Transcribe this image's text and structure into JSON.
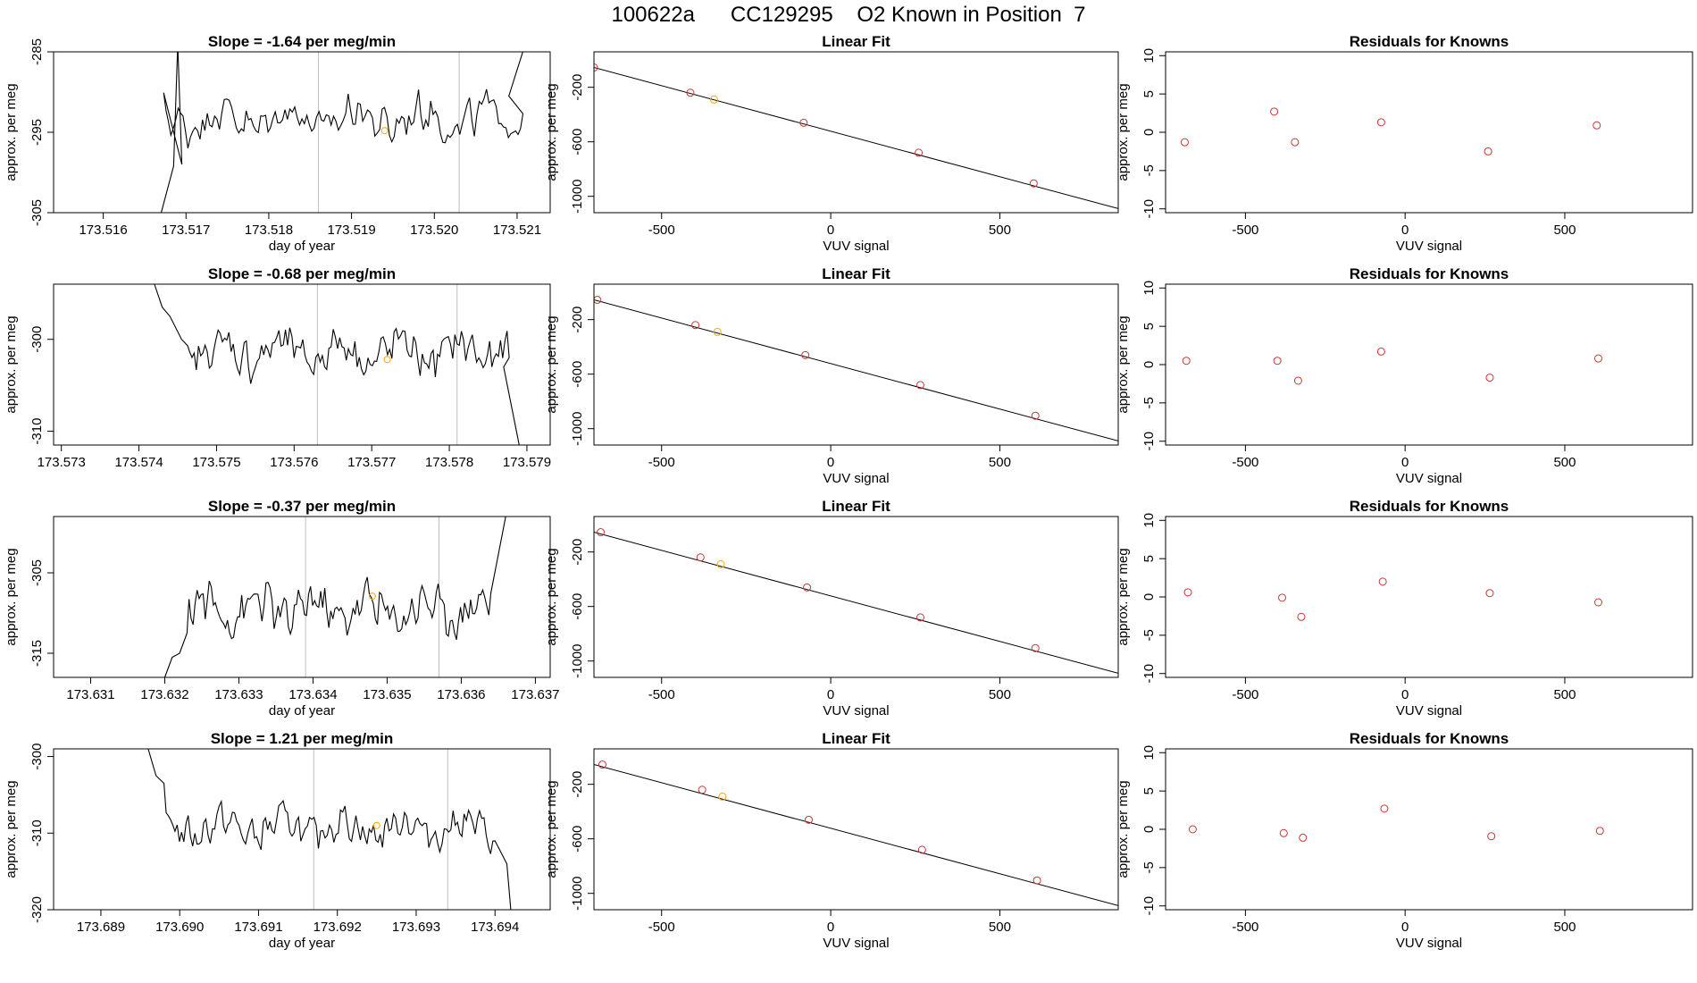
{
  "figure": {
    "title": "100622a      CC129295    O2 Known in Position  7"
  },
  "colors": {
    "trace": "#000000",
    "fit_line": "#000000",
    "known_marker": "#CD3333",
    "sample_marker": "#FFA500",
    "vline": "#BEBEBE",
    "axis": "#000000"
  },
  "chart_data": [
    {
      "type": "line",
      "panel": "timeseries",
      "row": 1,
      "title_prefix": "Slope = ",
      "slope": "-1.64",
      "title_suffix": " per meg/min",
      "xlabel": "day of year",
      "ylabel": "approx. per meg",
      "xlim": [
        173.5154,
        173.5214
      ],
      "ylim": [
        -305,
        -285
      ],
      "xticks": [
        "173.516",
        "173.517",
        "173.518",
        "173.519",
        "173.520",
        "173.521"
      ],
      "yticks": [
        "-305",
        "-295",
        "-285"
      ],
      "vlines": [
        173.5186,
        173.5203
      ],
      "highlight": {
        "x": 173.5194,
        "y": -294.8
      },
      "series": {
        "x_start": 173.5167,
        "x_end": 173.5211,
        "level": -293.3,
        "amp": 2.2,
        "head": [
          [
            173.5154,
            -305.0
          ],
          [
            173.5167,
            -305.0
          ],
          [
            173.51685,
            -299.2
          ],
          [
            173.5169,
            -284.0
          ],
          [
            173.51695,
            -299.0
          ]
        ],
        "tail": [
          [
            173.5209,
            -290.5
          ],
          [
            173.5211,
            -284.0
          ]
        ]
      }
    },
    {
      "type": "scatter",
      "panel": "linear_fit",
      "row": 1,
      "title": "Linear Fit",
      "xlabel": "VUV signal",
      "ylabel": "approx. per meg",
      "xlim": [
        -700,
        850
      ],
      "ylim": [
        -1120,
        60
      ],
      "xticks": [
        "-500",
        "0",
        "500"
      ],
      "yticks": [
        "-1000",
        "-600",
        "-200"
      ],
      "line": {
        "x": [
          -700,
          850
        ],
        "y": [
          -55,
          -1090
        ]
      },
      "points": [
        [
          -700,
          -55,
          "known"
        ],
        [
          -415,
          -240,
          "known"
        ],
        [
          -345,
          -290,
          "sample"
        ],
        [
          -80,
          -460,
          "known"
        ],
        [
          260,
          -680,
          "known"
        ],
        [
          600,
          -905,
          "known"
        ]
      ]
    },
    {
      "type": "scatter",
      "panel": "residuals",
      "row": 1,
      "title": "Residuals for Knowns",
      "xlabel": "VUV signal",
      "ylabel": "approx. per meg",
      "xlim": [
        -750,
        900
      ],
      "ylim": [
        -10.5,
        10.5
      ],
      "xticks": [
        "-500",
        "0",
        "500"
      ],
      "yticks": [
        "-10",
        "-5",
        "0",
        "5",
        "10"
      ],
      "points": [
        [
          -690,
          -1.3
        ],
        [
          -410,
          2.7
        ],
        [
          -345,
          -1.3
        ],
        [
          -75,
          1.3
        ],
        [
          260,
          -2.5
        ],
        [
          600,
          0.9
        ]
      ]
    },
    {
      "type": "line",
      "panel": "timeseries",
      "row": 2,
      "title_prefix": "Slope = ",
      "slope": "-0.68",
      "title_suffix": " per meg/min",
      "xlabel": "",
      "ylabel": "approx. per meg",
      "xlim": [
        173.5729,
        173.5793
      ],
      "ylim": [
        -311.5,
        -294
      ],
      "xticks": [
        "173.573",
        "173.574",
        "173.575",
        "173.576",
        "173.577",
        "173.578",
        "173.579"
      ],
      "yticks": [
        "-310",
        "-300"
      ],
      "vlines": [
        173.5763,
        173.5781
      ],
      "highlight": {
        "x": 173.5772,
        "y": -302.2
      },
      "series": {
        "x_start": 173.5746,
        "x_end": 173.5788,
        "level": -301.4,
        "amp": 2.0,
        "head": [
          [
            173.5742,
            -294.0
          ],
          [
            173.5743,
            -296.5
          ],
          [
            173.5744,
            -297.5
          ],
          [
            173.57455,
            -300.0
          ]
        ],
        "tail": [
          [
            173.5787,
            -303.0
          ],
          [
            173.5789,
            -311.5
          ]
        ]
      }
    },
    {
      "type": "scatter",
      "panel": "linear_fit",
      "row": 2,
      "title": "Linear Fit",
      "xlabel": "VUV signal",
      "ylabel": "approx. per meg",
      "xlim": [
        -700,
        850
      ],
      "ylim": [
        -1120,
        60
      ],
      "xticks": [
        "-500",
        "0",
        "500"
      ],
      "yticks": [
        "-1000",
        "-600",
        "-200"
      ],
      "line": {
        "x": [
          -700,
          850
        ],
        "y": [
          -55,
          -1090
        ]
      },
      "points": [
        [
          -690,
          -55,
          "known"
        ],
        [
          -400,
          -240,
          "known"
        ],
        [
          -335,
          -290,
          "sample"
        ],
        [
          -75,
          -460,
          "known"
        ],
        [
          265,
          -680,
          "known"
        ],
        [
          605,
          -905,
          "known"
        ]
      ]
    },
    {
      "type": "scatter",
      "panel": "residuals",
      "row": 2,
      "title": "Residuals for Knowns",
      "xlabel": "VUV signal",
      "ylabel": "approx. per meg",
      "xlim": [
        -750,
        900
      ],
      "ylim": [
        -10.5,
        10.5
      ],
      "xticks": [
        "-500",
        "0",
        "500"
      ],
      "yticks": [
        "-10",
        "-5",
        "0",
        "5",
        "10"
      ],
      "points": [
        [
          -685,
          0.5
        ],
        [
          -400,
          0.5
        ],
        [
          -335,
          -2.1
        ],
        [
          -75,
          1.7
        ],
        [
          265,
          -1.7
        ],
        [
          605,
          0.8
        ]
      ]
    },
    {
      "type": "line",
      "panel": "timeseries",
      "row": 3,
      "title_prefix": "Slope = ",
      "slope": "-0.37",
      "title_suffix": " per meg/min",
      "xlabel": "day of year",
      "ylabel": "approx. per meg",
      "xlim": [
        173.6305,
        173.6372
      ],
      "ylim": [
        -318,
        -298
      ],
      "xticks": [
        "173.631",
        "173.632",
        "173.633",
        "173.634",
        "173.635",
        "173.636",
        "173.637"
      ],
      "yticks": [
        "-315",
        "-305"
      ],
      "vlines": [
        173.6339,
        173.6357
      ],
      "highlight": {
        "x": 173.6348,
        "y": -307.9
      },
      "series": {
        "x_start": 173.6323,
        "x_end": 173.6364,
        "level": -309.5,
        "amp": 2.4,
        "head": [
          [
            173.632,
            -318.0
          ],
          [
            173.6321,
            -315.5
          ],
          [
            173.6322,
            -315.0
          ],
          [
            173.6323,
            -312.5
          ]
        ],
        "tail": [
          [
            173.6364,
            -307.5
          ],
          [
            173.6366,
            -298.0
          ]
        ]
      }
    },
    {
      "type": "scatter",
      "panel": "linear_fit",
      "row": 3,
      "title": "Linear Fit",
      "xlabel": "VUV signal",
      "ylabel": "approx. per meg",
      "xlim": [
        -700,
        850
      ],
      "ylim": [
        -1120,
        60
      ],
      "xticks": [
        "-500",
        "0",
        "500"
      ],
      "yticks": [
        "-1000",
        "-600",
        "-200"
      ],
      "line": {
        "x": [
          -700,
          850
        ],
        "y": [
          -55,
          -1090
        ]
      },
      "points": [
        [
          -680,
          -55,
          "known"
        ],
        [
          -385,
          -240,
          "known"
        ],
        [
          -325,
          -290,
          "sample"
        ],
        [
          -70,
          -460,
          "known"
        ],
        [
          265,
          -680,
          "known"
        ],
        [
          605,
          -905,
          "known"
        ]
      ]
    },
    {
      "type": "scatter",
      "panel": "residuals",
      "row": 3,
      "title": "Residuals for Knowns",
      "xlabel": "VUV signal",
      "ylabel": "approx. per meg",
      "xlim": [
        -750,
        900
      ],
      "ylim": [
        -10.5,
        10.5
      ],
      "xticks": [
        "-500",
        "0",
        "500"
      ],
      "yticks": [
        "-10",
        "-5",
        "0",
        "5",
        "10"
      ],
      "points": [
        [
          -680,
          0.6
        ],
        [
          -385,
          -0.1
        ],
        [
          -325,
          -2.6
        ],
        [
          -70,
          2.0
        ],
        [
          265,
          0.5
        ],
        [
          605,
          -0.7
        ]
      ]
    },
    {
      "type": "line",
      "panel": "timeseries",
      "row": 4,
      "title_prefix": "Slope = ",
      "slope": "1.21",
      "title_suffix": " per meg/min",
      "xlabel": "day of year",
      "ylabel": "approx. per meg",
      "xlim": [
        173.6884,
        173.6947
      ],
      "ylim": [
        -320,
        -299
      ],
      "xticks": [
        "173.689",
        "173.690",
        "173.691",
        "173.692",
        "173.693",
        "173.694"
      ],
      "yticks": [
        "-320",
        "-310",
        "-300"
      ],
      "vlines": [
        173.6917,
        173.6934
      ],
      "highlight": {
        "x": 173.6925,
        "y": -309.0
      },
      "series": {
        "x_start": 173.6898,
        "x_end": 173.694,
        "level": -309.3,
        "amp": 2.0,
        "head": [
          [
            173.6896,
            -299.0
          ],
          [
            173.6897,
            -302.5
          ],
          [
            173.6898,
            -303.5
          ]
        ],
        "tail": [
          [
            173.694,
            -311.0
          ],
          [
            173.69415,
            -314.0
          ],
          [
            173.6942,
            -320.0
          ]
        ]
      }
    },
    {
      "type": "scatter",
      "panel": "linear_fit",
      "row": 4,
      "title": "Linear Fit",
      "xlabel": "VUV signal",
      "ylabel": "approx. per meg",
      "xlim": [
        -700,
        850
      ],
      "ylim": [
        -1120,
        60
      ],
      "xticks": [
        "-500",
        "0",
        "500"
      ],
      "yticks": [
        "-1000",
        "-600",
        "-200"
      ],
      "line": {
        "x": [
          -700,
          850
        ],
        "y": [
          -55,
          -1090
        ]
      },
      "points": [
        [
          -675,
          -55,
          "known"
        ],
        [
          -380,
          -240,
          "known"
        ],
        [
          -320,
          -290,
          "sample"
        ],
        [
          -65,
          -460,
          "known"
        ],
        [
          270,
          -680,
          "known"
        ],
        [
          610,
          -905,
          "known"
        ]
      ]
    },
    {
      "type": "scatter",
      "panel": "residuals",
      "row": 4,
      "title": "Residuals for Knowns",
      "xlabel": "VUV signal",
      "ylabel": "approx. per meg",
      "xlim": [
        -750,
        900
      ],
      "ylim": [
        -10.5,
        10.5
      ],
      "xticks": [
        "-500",
        "0",
        "500"
      ],
      "yticks": [
        "-10",
        "-5",
        "0",
        "5",
        "10"
      ],
      "points": [
        [
          -665,
          0.0
        ],
        [
          -380,
          -0.5
        ],
        [
          -320,
          -1.1
        ],
        [
          -65,
          2.7
        ],
        [
          270,
          -0.9
        ],
        [
          610,
          -0.2
        ]
      ]
    }
  ]
}
